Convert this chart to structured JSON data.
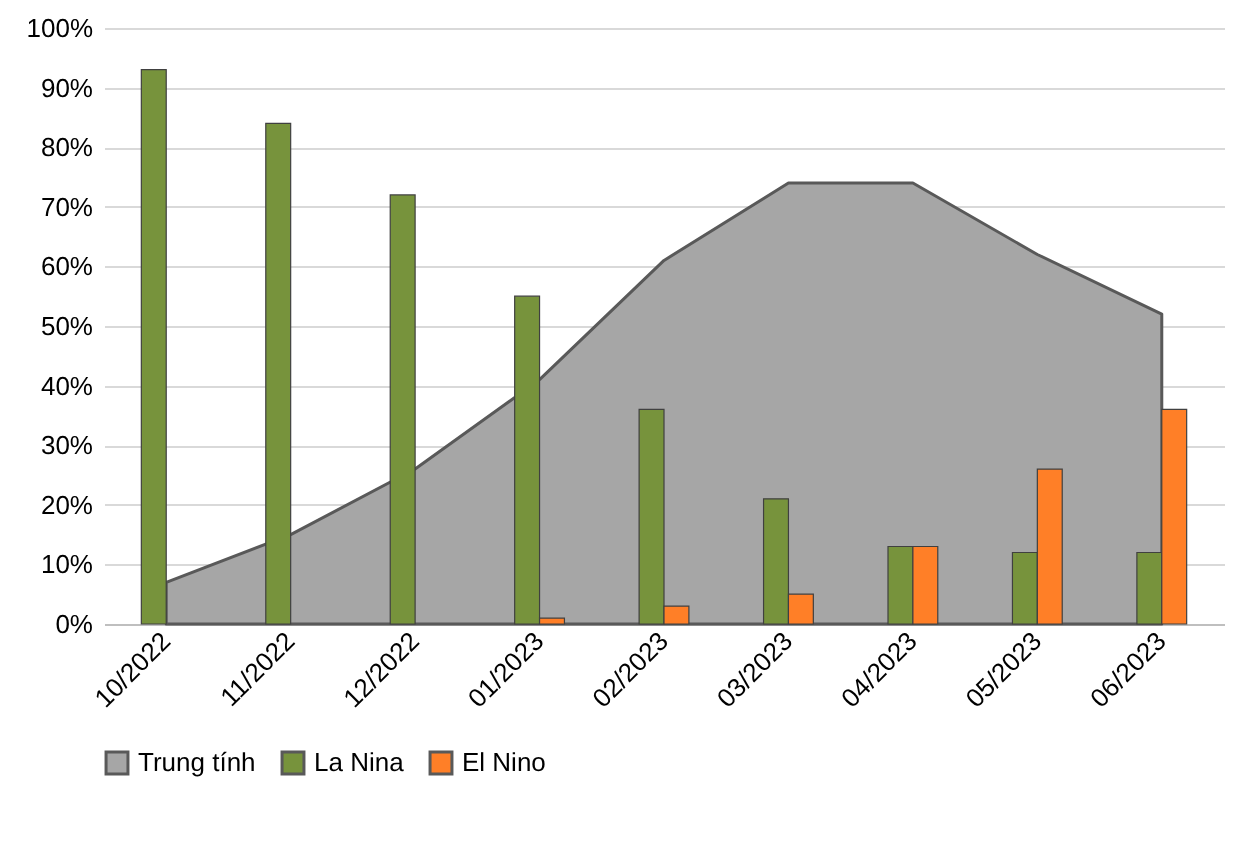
{
  "chart_data": {
    "type": "bar",
    "categories": [
      "10/2022",
      "11/2022",
      "12/2022",
      "01/2023",
      "02/2023",
      "03/2023",
      "04/2023",
      "05/2023",
      "06/2023"
    ],
    "series": [
      {
        "name": "Trung tính",
        "type": "area",
        "color": "#a6a6a6",
        "values": [
          7,
          15,
          26,
          41,
          61,
          74,
          74,
          62,
          52
        ]
      },
      {
        "name": "La Nina",
        "color": "#77933c",
        "values": [
          93,
          84,
          72,
          55,
          36,
          21,
          13,
          12,
          12
        ]
      },
      {
        "name": "El Nino",
        "color": "#ff7f27",
        "values": [
          null,
          null,
          null,
          1,
          3,
          5,
          13,
          26,
          36
        ]
      }
    ],
    "ylim": [
      0,
      100
    ],
    "yticks": [
      {
        "value": 0,
        "label": "0%"
      },
      {
        "value": 10,
        "label": "10%"
      },
      {
        "value": 20,
        "label": "20%"
      },
      {
        "value": 30,
        "label": "30%"
      },
      {
        "value": 40,
        "label": "40%"
      },
      {
        "value": 50,
        "label": "50%"
      },
      {
        "value": 60,
        "label": "60%"
      },
      {
        "value": 70,
        "label": "70%"
      },
      {
        "value": 80,
        "label": "80%"
      },
      {
        "value": 90,
        "label": "90%"
      },
      {
        "value": 100,
        "label": "100%"
      }
    ],
    "grid": "y",
    "legend": "bottom"
  }
}
